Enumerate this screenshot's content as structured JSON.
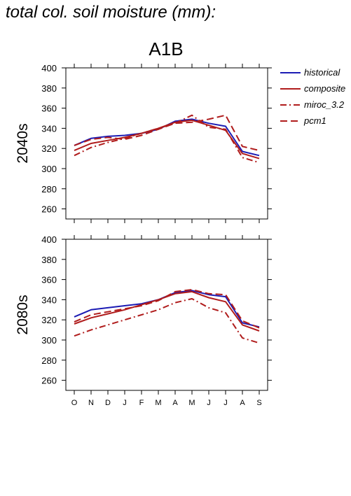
{
  "page_title": "total col. soil moisture (mm):",
  "chart_data": {
    "type": "line",
    "scenario": "A1B",
    "legend_placement": "right",
    "categories": [
      "O",
      "N",
      "D",
      "J",
      "F",
      "M",
      "A",
      "M",
      "J",
      "J",
      "A",
      "S"
    ],
    "ylim": [
      250,
      400
    ],
    "yticks": [
      260,
      280,
      300,
      320,
      340,
      360,
      380,
      400
    ],
    "legend": [
      {
        "name": "historical",
        "color": "#1c1cb4",
        "dash": "solid"
      },
      {
        "name": "composite",
        "color": "#b01c1c",
        "dash": "solid"
      },
      {
        "name": "miroc_3.2",
        "color": "#b01c1c",
        "dash": "dashdot"
      },
      {
        "name": "pcm1",
        "color": "#b01c1c",
        "dash": "dash"
      }
    ],
    "panels": [
      {
        "ylabel": "2040s",
        "series": [
          {
            "name": "historical",
            "values": [
              323,
              330,
              332,
              333,
              335,
              339,
              347,
              349,
              345,
              342,
              317,
              313
            ]
          },
          {
            "name": "composite",
            "values": [
              318,
              325,
              328,
              331,
              335,
              340,
              346,
              348,
              343,
              338,
              315,
              310
            ]
          },
          {
            "name": "miroc_3.2",
            "values": [
              313,
              321,
              326,
              330,
              335,
              340,
              345,
              353,
              341,
              339,
              311,
              306
            ]
          },
          {
            "name": "pcm1",
            "values": [
              323,
              329,
              331,
              329,
              333,
              339,
              345,
              346,
              349,
              353,
              322,
              318
            ]
          }
        ]
      },
      {
        "ylabel": "2080s",
        "series": [
          {
            "name": "historical",
            "values": [
              323,
              330,
              332,
              334,
              336,
              340,
              347,
              349,
              345,
              343,
              317,
              313
            ]
          },
          {
            "name": "composite",
            "values": [
              316,
              322,
              326,
              330,
              335,
              340,
              346,
              348,
              342,
              338,
              315,
              309
            ]
          },
          {
            "name": "miroc_3.2",
            "values": [
              304,
              310,
              315,
              320,
              325,
              330,
              337,
              341,
              332,
              327,
              302,
              297
            ]
          },
          {
            "name": "pcm1",
            "values": [
              318,
              325,
              328,
              331,
              334,
              339,
              348,
              350,
              346,
              345,
              319,
              312
            ]
          }
        ]
      }
    ]
  }
}
